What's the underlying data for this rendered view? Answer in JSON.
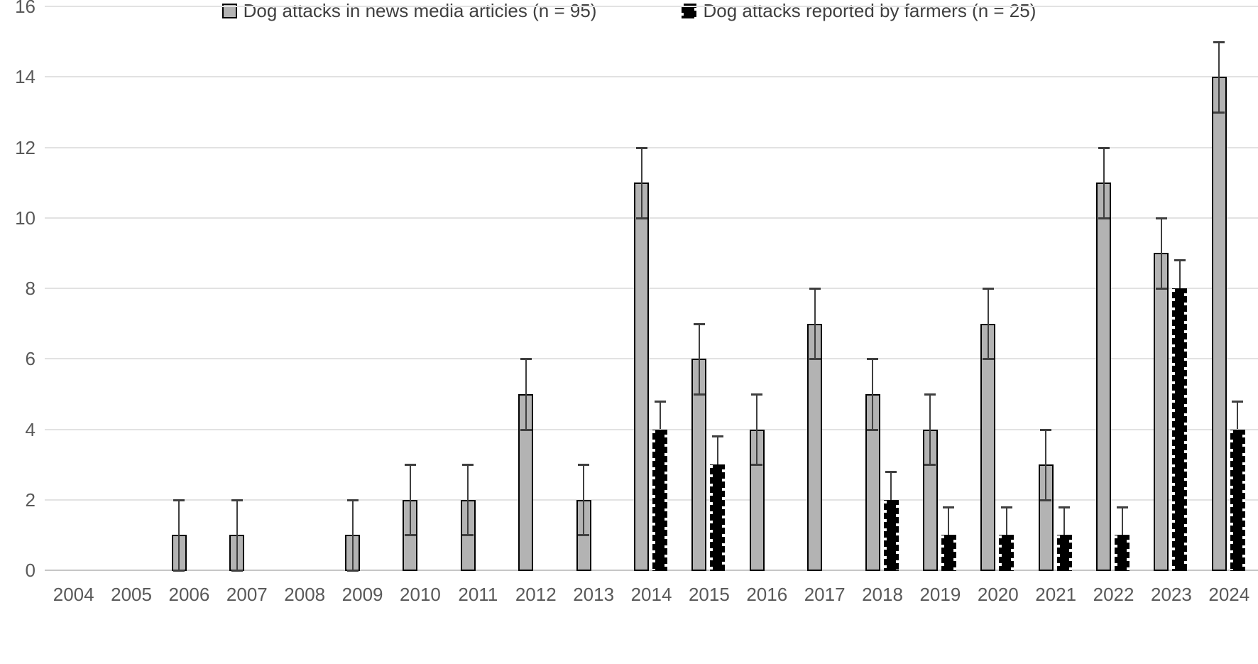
{
  "chart_data": {
    "type": "bar",
    "title": "",
    "xlabel": "",
    "ylabel": "",
    "categories": [
      "2004",
      "2005",
      "2006",
      "2007",
      "2008",
      "2009",
      "2010",
      "2011",
      "2012",
      "2013",
      "2014",
      "2015",
      "2016",
      "2017",
      "2018",
      "2019",
      "2020",
      "2021",
      "2022",
      "2023",
      "2024"
    ],
    "series": [
      {
        "name": "Dog attacks in news media articles (n = 95)",
        "color": "#b3b3b3",
        "pattern": "solid-gray-with-black-border",
        "values": [
          0,
          0,
          1,
          1,
          0,
          1,
          2,
          2,
          5,
          2,
          11,
          6,
          4,
          7,
          5,
          4,
          7,
          3,
          11,
          9,
          14
        ],
        "error_plus": [
          0,
          0,
          1,
          1,
          0,
          1,
          1,
          1,
          1,
          1,
          1,
          1,
          1,
          1,
          1,
          1,
          1,
          1,
          1,
          1,
          1
        ],
        "error_minus": [
          0,
          0,
          1,
          1,
          0,
          1,
          1,
          1,
          1,
          1,
          1,
          1,
          1,
          1,
          1,
          1,
          1,
          1,
          1,
          1,
          1
        ]
      },
      {
        "name": "Dog attacks reported by farmers (n = 25)",
        "color": "#000000",
        "pattern": "black-dotted",
        "values": [
          0,
          0,
          0,
          0,
          0,
          0,
          0,
          0,
          0,
          0,
          4,
          3,
          0,
          0,
          2,
          1,
          1,
          1,
          1,
          8,
          4
        ],
        "error_plus": [
          0,
          0,
          0,
          0,
          0,
          0,
          0,
          0,
          0,
          0,
          0.8,
          0.8,
          0,
          0,
          0.8,
          0.8,
          0.8,
          0.8,
          0.8,
          0.8,
          0.8
        ],
        "error_minus": [
          0,
          0,
          0,
          0,
          0,
          0,
          0,
          0,
          0,
          0,
          0.8,
          0.8,
          0,
          0,
          0.8,
          0.8,
          0.8,
          0.8,
          0.8,
          0.8,
          0.8
        ]
      }
    ],
    "ylim": [
      0,
      16
    ],
    "yticks": [
      0,
      2,
      4,
      6,
      8,
      10,
      12,
      14,
      16
    ],
    "grid": true,
    "error_bars": true,
    "legend_position": "bottom",
    "colors": {
      "grid_line": "#e2e2e2",
      "axis_line": "#c6c6c6",
      "tick_text": "#595959",
      "error_bar": "#3f3f3f",
      "bar_news": "#b3b3b3",
      "bar_farmers": "#000000"
    }
  }
}
